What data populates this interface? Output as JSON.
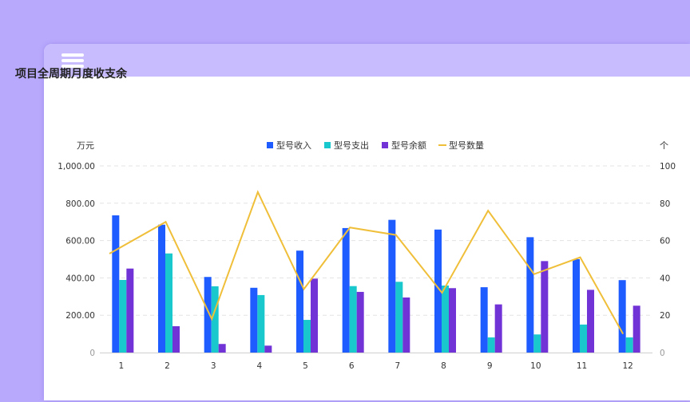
{
  "header": {
    "menu_icon": "hamburger-menu-icon"
  },
  "chart_title": "项目全周期月度收支余",
  "colors": {
    "background": "#b9a9fd",
    "header": "#c8bcfe",
    "income": "#1f5cff",
    "expense": "#18c8cc",
    "balance": "#7233d6",
    "quantity": "#f0bf3a"
  },
  "chart_data": {
    "type": "bar",
    "title": "项目全周期月度收支余",
    "xlabel": "",
    "ylabel": "万元",
    "y2label": "个",
    "ylim": [
      0,
      1000
    ],
    "y2lim": [
      0,
      100
    ],
    "yticks": [
      "0",
      "200.00",
      "400.00",
      "600.00",
      "800.00",
      "1,000.00"
    ],
    "y2ticks": [
      "0",
      "20",
      "40",
      "60",
      "80",
      "100"
    ],
    "grid": true,
    "legend_position": "top",
    "categories": [
      "1",
      "2",
      "3",
      "4",
      "5",
      "6",
      "7",
      "8",
      "9",
      "10",
      "11",
      "12"
    ],
    "series": [
      {
        "name": "型号收入",
        "type": "bar",
        "axis": "left",
        "color": "#1f5cff",
        "values": [
          735,
          685,
          405,
          347,
          546,
          667,
          711,
          659,
          350,
          618,
          500,
          388
        ]
      },
      {
        "name": "型号支出",
        "type": "bar",
        "axis": "left",
        "color": "#18c8cc",
        "values": [
          389,
          531,
          355,
          308,
          175,
          356,
          379,
          359,
          81,
          97,
          150,
          81
        ]
      },
      {
        "name": "型号余额",
        "type": "bar",
        "axis": "left",
        "color": "#7233d6",
        "values": [
          450,
          141,
          46,
          37,
          396,
          325,
          295,
          345,
          258,
          490,
          336,
          251
        ]
      },
      {
        "name": "型号数量",
        "type": "line",
        "axis": "right",
        "color": "#f0bf3a",
        "values": [
          53,
          70,
          18,
          86,
          34,
          67,
          63,
          32,
          76,
          42,
          51,
          10
        ]
      }
    ]
  }
}
